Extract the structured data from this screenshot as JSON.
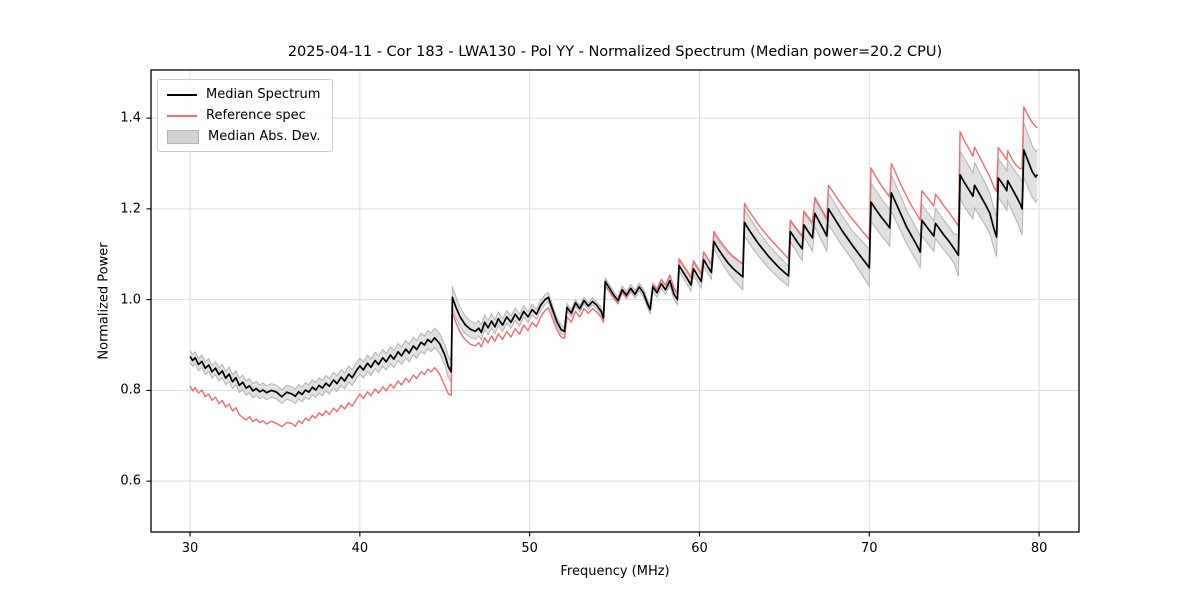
{
  "figure": {
    "title": "2025-04-11 - Cor 183 - LWA130 - Pol YY - Normalized Spectrum (Median power=20.2 CPU)",
    "xlabel": "Frequency (MHz)",
    "ylabel": "Normalized Power",
    "legend": [
      {
        "label": "Median Spectrum",
        "kind": "line",
        "color": "#000000"
      },
      {
        "label": "Reference spec",
        "kind": "line",
        "color": "#f36c6c"
      },
      {
        "label": "Median Abs. Dev.",
        "kind": "patch",
        "color": "#d2d2d2"
      }
    ]
  },
  "chart_data": {
    "type": "line",
    "title": "2025-04-11 - Cor 183 - LWA130 - Pol YY - Normalized Spectrum (Median power=20.2 CPU)",
    "xlabel": "Frequency (MHz)",
    "ylabel": "Normalized Power",
    "xlim": [
      27.7,
      82.35
    ],
    "ylim": [
      0.488,
      1.506
    ],
    "xticks": [
      30,
      40,
      50,
      60,
      70,
      80
    ],
    "yticks": [
      0.6,
      0.8,
      1.0,
      1.2,
      1.4
    ],
    "grid": true,
    "legend_position": "upper left",
    "colors": {
      "background": "#ffffff",
      "grid": "#dcdcdc",
      "spine": "#000000",
      "median": "#000000",
      "reference": "#f36c6c",
      "band_fill": "#c9c9c9",
      "band_edge": "#a9a9a9"
    },
    "series": [
      {
        "name": "Median Spectrum",
        "type": "line",
        "color": "#000000",
        "width": 1.7,
        "column": 1
      },
      {
        "name": "Reference spec",
        "type": "line",
        "color": "#f36c6c",
        "width": 1.4,
        "column": 2
      },
      {
        "name": "Median Abs. Dev.",
        "type": "band",
        "around": "Median Spectrum",
        "fill": "#c9c9c9",
        "edge": "#a9a9a9",
        "halfwidth_key": "mad_keypoints"
      }
    ],
    "points_format": [
      "frequency_MHz",
      "median_spectrum",
      "reference_spec"
    ],
    "points": [
      [
        30.0,
        0.875,
        0.81
      ],
      [
        30.15,
        0.866,
        0.799
      ],
      [
        30.3,
        0.872,
        0.806
      ],
      [
        30.5,
        0.857,
        0.794
      ],
      [
        30.7,
        0.864,
        0.801
      ],
      [
        30.9,
        0.849,
        0.786
      ],
      [
        31.1,
        0.856,
        0.792
      ],
      [
        31.3,
        0.841,
        0.778
      ],
      [
        31.5,
        0.849,
        0.785
      ],
      [
        31.7,
        0.835,
        0.771
      ],
      [
        31.9,
        0.843,
        0.778
      ],
      [
        32.1,
        0.827,
        0.763
      ],
      [
        32.3,
        0.836,
        0.77
      ],
      [
        32.5,
        0.819,
        0.755
      ],
      [
        32.7,
        0.828,
        0.762
      ],
      [
        32.9,
        0.811,
        0.747
      ],
      [
        33.1,
        0.818,
        0.74
      ],
      [
        33.3,
        0.805,
        0.735
      ],
      [
        33.5,
        0.81,
        0.742
      ],
      [
        33.7,
        0.799,
        0.731
      ],
      [
        33.9,
        0.804,
        0.737
      ],
      [
        34.1,
        0.797,
        0.729
      ],
      [
        34.3,
        0.801,
        0.733
      ],
      [
        34.5,
        0.795,
        0.726
      ],
      [
        34.8,
        0.8,
        0.732
      ],
      [
        35.1,
        0.796,
        0.727
      ],
      [
        35.4,
        0.786,
        0.72
      ],
      [
        35.7,
        0.796,
        0.729
      ],
      [
        36.0,
        0.792,
        0.727
      ],
      [
        36.2,
        0.787,
        0.721
      ],
      [
        36.4,
        0.797,
        0.733
      ],
      [
        36.6,
        0.791,
        0.727
      ],
      [
        36.8,
        0.801,
        0.739
      ],
      [
        37.0,
        0.796,
        0.733
      ],
      [
        37.2,
        0.807,
        0.745
      ],
      [
        37.4,
        0.801,
        0.739
      ],
      [
        37.6,
        0.811,
        0.751
      ],
      [
        37.8,
        0.805,
        0.744
      ],
      [
        38.0,
        0.816,
        0.755
      ],
      [
        38.2,
        0.809,
        0.747
      ],
      [
        38.45,
        0.823,
        0.761
      ],
      [
        38.65,
        0.815,
        0.753
      ],
      [
        38.9,
        0.829,
        0.767
      ],
      [
        39.1,
        0.821,
        0.759
      ],
      [
        39.35,
        0.836,
        0.773
      ],
      [
        39.55,
        0.828,
        0.765
      ],
      [
        39.8,
        0.844,
        0.781
      ],
      [
        40.0,
        0.854,
        0.792
      ],
      [
        40.2,
        0.845,
        0.782
      ],
      [
        40.45,
        0.86,
        0.797
      ],
      [
        40.65,
        0.851,
        0.788
      ],
      [
        40.9,
        0.866,
        0.803
      ],
      [
        41.1,
        0.857,
        0.794
      ],
      [
        41.35,
        0.872,
        0.808
      ],
      [
        41.55,
        0.863,
        0.799
      ],
      [
        41.8,
        0.878,
        0.814
      ],
      [
        42.0,
        0.869,
        0.805
      ],
      [
        42.25,
        0.885,
        0.821
      ],
      [
        42.45,
        0.876,
        0.812
      ],
      [
        42.7,
        0.891,
        0.827
      ],
      [
        42.9,
        0.882,
        0.818
      ],
      [
        43.15,
        0.898,
        0.834
      ],
      [
        43.35,
        0.89,
        0.826
      ],
      [
        43.6,
        0.906,
        0.841
      ],
      [
        43.8,
        0.9,
        0.835
      ],
      [
        44.0,
        0.912,
        0.847
      ],
      [
        44.2,
        0.906,
        0.841
      ],
      [
        44.4,
        0.916,
        0.85
      ],
      [
        44.7,
        0.903,
        0.836
      ],
      [
        45.0,
        0.878,
        0.81
      ],
      [
        45.2,
        0.853,
        0.793
      ],
      [
        45.38,
        0.841,
        0.789
      ],
      [
        45.45,
        1.005,
        0.972
      ],
      [
        45.65,
        0.984,
        0.95
      ],
      [
        45.9,
        0.962,
        0.928
      ],
      [
        46.2,
        0.945,
        0.912
      ],
      [
        46.5,
        0.935,
        0.902
      ],
      [
        46.8,
        0.93,
        0.898
      ],
      [
        47.0,
        0.937,
        0.905
      ],
      [
        47.15,
        0.928,
        0.896
      ],
      [
        47.35,
        0.95,
        0.916
      ],
      [
        47.55,
        0.938,
        0.905
      ],
      [
        47.75,
        0.953,
        0.92
      ],
      [
        47.95,
        0.94,
        0.908
      ],
      [
        48.15,
        0.958,
        0.925
      ],
      [
        48.4,
        0.944,
        0.912
      ],
      [
        48.65,
        0.962,
        0.93
      ],
      [
        48.9,
        0.95,
        0.918
      ],
      [
        49.15,
        0.968,
        0.936
      ],
      [
        49.4,
        0.955,
        0.924
      ],
      [
        49.65,
        0.974,
        0.944
      ],
      [
        49.9,
        0.962,
        0.932
      ],
      [
        50.15,
        0.978,
        0.95
      ],
      [
        50.4,
        0.968,
        0.94
      ],
      [
        50.65,
        0.988,
        0.962
      ],
      [
        50.9,
        1.0,
        0.976
      ],
      [
        51.1,
        1.005,
        0.982
      ],
      [
        51.35,
        0.978,
        0.958
      ],
      [
        51.6,
        0.952,
        0.934
      ],
      [
        51.85,
        0.934,
        0.918
      ],
      [
        52.05,
        0.93,
        0.915
      ],
      [
        52.2,
        0.983,
        0.962
      ],
      [
        52.45,
        0.97,
        0.95
      ],
      [
        52.7,
        0.993,
        0.974
      ],
      [
        52.95,
        0.98,
        0.962
      ],
      [
        53.2,
        0.998,
        0.98
      ],
      [
        53.45,
        0.986,
        0.97
      ],
      [
        53.7,
        0.996,
        0.98
      ],
      [
        53.95,
        0.988,
        0.973
      ],
      [
        54.2,
        0.975,
        0.962
      ],
      [
        54.35,
        0.96,
        0.95
      ],
      [
        54.45,
        1.04,
        1.03
      ],
      [
        54.7,
        1.025,
        1.017
      ],
      [
        54.95,
        1.01,
        1.003
      ],
      [
        55.2,
        0.998,
        0.992
      ],
      [
        55.45,
        1.022,
        1.017
      ],
      [
        55.7,
        1.01,
        1.006
      ],
      [
        55.95,
        1.025,
        1.022
      ],
      [
        56.2,
        1.012,
        1.01
      ],
      [
        56.45,
        1.028,
        1.027
      ],
      [
        56.7,
        1.015,
        1.015
      ],
      [
        56.95,
        0.99,
        0.992
      ],
      [
        57.1,
        0.978,
        0.981
      ],
      [
        57.25,
        1.028,
        1.033
      ],
      [
        57.5,
        1.015,
        1.022
      ],
      [
        57.75,
        1.035,
        1.044
      ],
      [
        58.0,
        1.022,
        1.032
      ],
      [
        58.25,
        1.042,
        1.054
      ],
      [
        58.5,
        1.012,
        1.026
      ],
      [
        58.7,
        1.0,
        1.015
      ],
      [
        58.8,
        1.075,
        1.09
      ],
      [
        59.05,
        1.06,
        1.076
      ],
      [
        59.3,
        1.045,
        1.062
      ],
      [
        59.5,
        1.032,
        1.05
      ],
      [
        59.65,
        1.068,
        1.086
      ],
      [
        59.9,
        1.052,
        1.07
      ],
      [
        60.1,
        1.04,
        1.058
      ],
      [
        60.25,
        1.088,
        1.105
      ],
      [
        60.5,
        1.072,
        1.09
      ],
      [
        60.7,
        1.06,
        1.078
      ],
      [
        60.85,
        1.128,
        1.15
      ],
      [
        61.1,
        1.112,
        1.135
      ],
      [
        61.4,
        1.095,
        1.12
      ],
      [
        61.7,
        1.08,
        1.106
      ],
      [
        62.0,
        1.068,
        1.095
      ],
      [
        62.3,
        1.058,
        1.086
      ],
      [
        62.55,
        1.05,
        1.078
      ],
      [
        62.65,
        1.17,
        1.212
      ],
      [
        62.9,
        1.155,
        1.196
      ],
      [
        63.2,
        1.138,
        1.18
      ],
      [
        63.5,
        1.122,
        1.164
      ],
      [
        63.8,
        1.108,
        1.15
      ],
      [
        64.1,
        1.094,
        1.136
      ],
      [
        64.4,
        1.082,
        1.124
      ],
      [
        64.7,
        1.07,
        1.112
      ],
      [
        65.0,
        1.06,
        1.1
      ],
      [
        65.25,
        1.052,
        1.09
      ],
      [
        65.35,
        1.15,
        1.175
      ],
      [
        65.6,
        1.136,
        1.162
      ],
      [
        65.85,
        1.122,
        1.15
      ],
      [
        66.05,
        1.112,
        1.14
      ],
      [
        66.15,
        1.165,
        1.195
      ],
      [
        66.4,
        1.15,
        1.182
      ],
      [
        66.65,
        1.136,
        1.17
      ],
      [
        66.8,
        1.19,
        1.225
      ],
      [
        67.05,
        1.172,
        1.208
      ],
      [
        67.3,
        1.155,
        1.192
      ],
      [
        67.5,
        1.14,
        1.178
      ],
      [
        67.6,
        1.2,
        1.252
      ],
      [
        67.85,
        1.185,
        1.238
      ],
      [
        68.1,
        1.17,
        1.224
      ],
      [
        68.4,
        1.152,
        1.208
      ],
      [
        68.7,
        1.136,
        1.192
      ],
      [
        69.0,
        1.12,
        1.178
      ],
      [
        69.3,
        1.105,
        1.164
      ],
      [
        69.6,
        1.09,
        1.15
      ],
      [
        69.85,
        1.078,
        1.14
      ],
      [
        70.0,
        1.07,
        1.132
      ],
      [
        70.1,
        1.215,
        1.29
      ],
      [
        70.4,
        1.198,
        1.27
      ],
      [
        70.7,
        1.182,
        1.252
      ],
      [
        71.0,
        1.168,
        1.236
      ],
      [
        71.2,
        1.158,
        1.226
      ],
      [
        71.3,
        1.235,
        1.3
      ],
      [
        71.6,
        1.21,
        1.275
      ],
      [
        71.9,
        1.185,
        1.25
      ],
      [
        72.2,
        1.16,
        1.228
      ],
      [
        72.5,
        1.14,
        1.206
      ],
      [
        72.8,
        1.12,
        1.188
      ],
      [
        73.0,
        1.105,
        1.175
      ],
      [
        73.1,
        1.175,
        1.24
      ],
      [
        73.35,
        1.162,
        1.228
      ],
      [
        73.6,
        1.15,
        1.216
      ],
      [
        73.8,
        1.14,
        1.206
      ],
      [
        73.9,
        1.168,
        1.232
      ],
      [
        74.15,
        1.155,
        1.22
      ],
      [
        74.4,
        1.142,
        1.206
      ],
      [
        74.7,
        1.128,
        1.192
      ],
      [
        75.0,
        1.112,
        1.176
      ],
      [
        75.25,
        1.098,
        1.162
      ],
      [
        75.35,
        1.275,
        1.37
      ],
      [
        75.6,
        1.258,
        1.35
      ],
      [
        75.9,
        1.24,
        1.33
      ],
      [
        76.1,
        1.228,
        1.316
      ],
      [
        76.2,
        1.252,
        1.336
      ],
      [
        76.5,
        1.232,
        1.314
      ],
      [
        76.8,
        1.212,
        1.292
      ],
      [
        77.1,
        1.19,
        1.27
      ],
      [
        77.35,
        1.155,
        1.248
      ],
      [
        77.5,
        1.138,
        1.238
      ],
      [
        77.6,
        1.268,
        1.335
      ],
      [
        77.85,
        1.255,
        1.322
      ],
      [
        78.1,
        1.24,
        1.308
      ],
      [
        78.15,
        1.262,
        1.328
      ],
      [
        78.4,
        1.245,
        1.31
      ],
      [
        78.65,
        1.228,
        1.296
      ],
      [
        78.9,
        1.21,
        1.288
      ],
      [
        79.0,
        1.2,
        1.29
      ],
      [
        79.1,
        1.33,
        1.425
      ],
      [
        79.35,
        1.305,
        1.405
      ],
      [
        79.6,
        1.282,
        1.39
      ],
      [
        79.8,
        1.27,
        1.382
      ],
      [
        79.9,
        1.276,
        1.378
      ]
    ],
    "mad_keypoints": [
      [
        30,
        0.013
      ],
      [
        33,
        0.016
      ],
      [
        35,
        0.015
      ],
      [
        38,
        0.017
      ],
      [
        41,
        0.018
      ],
      [
        44,
        0.02
      ],
      [
        45.4,
        0.024
      ],
      [
        46.5,
        0.018
      ],
      [
        48,
        0.015
      ],
      [
        50,
        0.012
      ],
      [
        51.5,
        0.01
      ],
      [
        53,
        0.007
      ],
      [
        55,
        0.008
      ],
      [
        57,
        0.009
      ],
      [
        58.8,
        0.012
      ],
      [
        61,
        0.016
      ],
      [
        62.7,
        0.03
      ],
      [
        64,
        0.026
      ],
      [
        65.3,
        0.022
      ],
      [
        66.5,
        0.028
      ],
      [
        67.6,
        0.035
      ],
      [
        69,
        0.032
      ],
      [
        70.1,
        0.042
      ],
      [
        71.3,
        0.04
      ],
      [
        73,
        0.035
      ],
      [
        75,
        0.032
      ],
      [
        75.4,
        0.055
      ],
      [
        77,
        0.045
      ],
      [
        78,
        0.042
      ],
      [
        79.1,
        0.06
      ],
      [
        79.9,
        0.055
      ]
    ]
  }
}
